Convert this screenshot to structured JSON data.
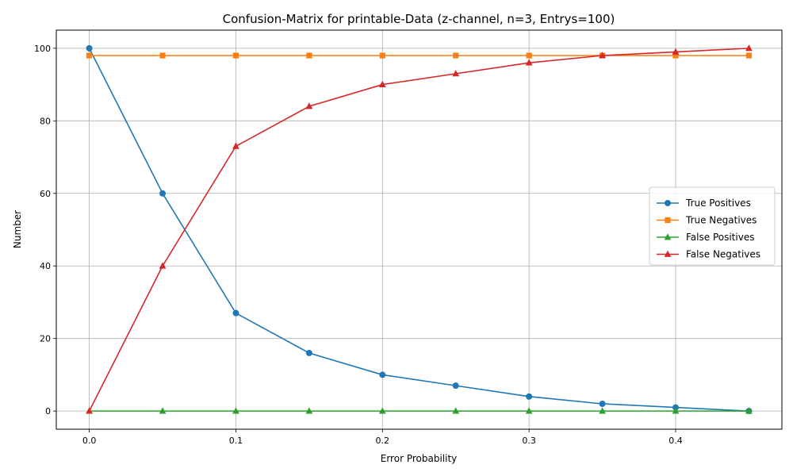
{
  "chart_data": {
    "type": "line",
    "title": "Confusion-Matrix for printable-Data (z-channel, n=3, Entrys=100)",
    "xlabel": "Error Probability",
    "ylabel": "Number",
    "xlim": [
      -0.0225,
      0.4725
    ],
    "ylim": [
      -5,
      105
    ],
    "x_ticks": [
      0.0,
      0.1,
      0.2,
      0.3,
      0.4
    ],
    "x_tick_labels": [
      "0.0",
      "0.1",
      "0.2",
      "0.3",
      "0.4"
    ],
    "y_ticks": [
      0,
      20,
      40,
      60,
      80,
      100
    ],
    "y_tick_labels": [
      "0",
      "20",
      "40",
      "60",
      "80",
      "100"
    ],
    "grid": true,
    "legend_position": "center-right",
    "x": [
      0.0,
      0.05,
      0.1,
      0.15,
      0.2,
      0.25,
      0.3,
      0.35,
      0.4,
      0.45
    ],
    "series": [
      {
        "name": "True Positives",
        "color": "#1f77b4",
        "marker": "circle",
        "values": [
          100,
          60,
          27,
          16,
          10,
          7,
          4,
          2,
          1,
          0
        ]
      },
      {
        "name": "True Negatives",
        "color": "#ff7f0e",
        "marker": "square",
        "values": [
          98,
          98,
          98,
          98,
          98,
          98,
          98,
          98,
          98,
          98
        ]
      },
      {
        "name": "False Positives",
        "color": "#2ca02c",
        "marker": "triangle",
        "values": [
          0,
          0,
          0,
          0,
          0,
          0,
          0,
          0,
          0,
          0
        ]
      },
      {
        "name": "False Negatives",
        "color": "#d62728",
        "marker": "triangle",
        "values": [
          0,
          40,
          73,
          84,
          90,
          93,
          96,
          98,
          99,
          100
        ]
      }
    ]
  }
}
